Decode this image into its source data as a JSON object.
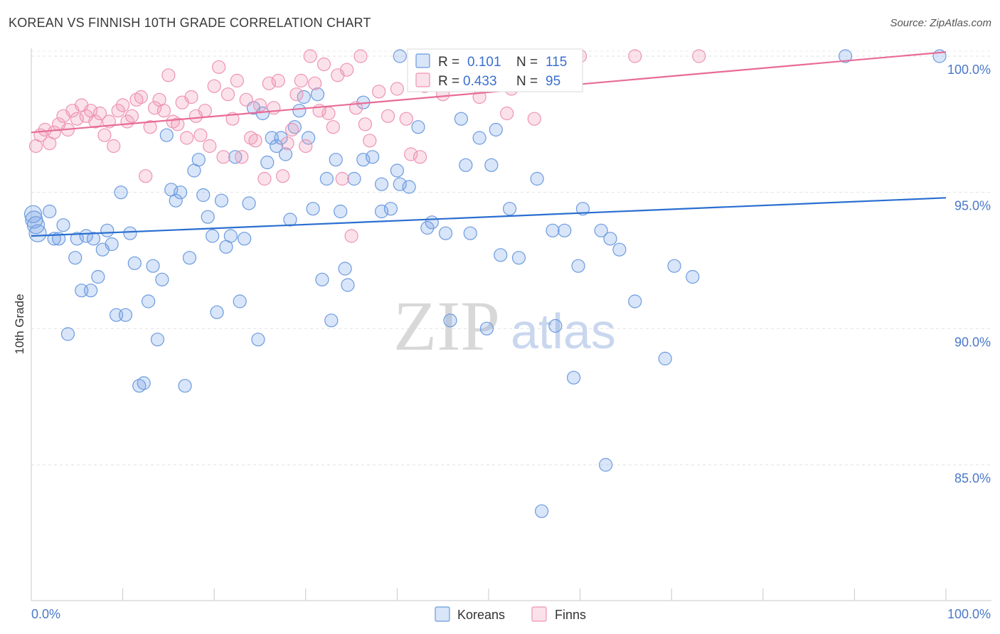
{
  "title": "KOREAN VS FINNISH 10TH GRADE CORRELATION CHART",
  "source": "Source: ZipAtlas.com",
  "watermark": {
    "zip": "ZIP",
    "atlas": "atlas"
  },
  "colors": {
    "korean": "#6b9be0",
    "korean_fill": "rgba(120,160,230,0.28)",
    "korean_line": "#2a6fd0",
    "finn": "#ee93b3",
    "finn_fill": "rgba(240,150,180,0.28)",
    "finn_line": "#e86b97",
    "accent": "#3a6fd0"
  },
  "legend": {
    "r_label": "R =",
    "n_label": "N =",
    "korean": {
      "r": "0.101",
      "n": "115"
    },
    "finn": {
      "r": "0.433",
      "n": "95"
    }
  },
  "bottom_legend": [
    "Koreans",
    "Finns"
  ],
  "chart_data": {
    "type": "scatter",
    "title": "KOREAN VS FINNISH 10TH GRADE CORRELATION CHART",
    "xlabel": "",
    "ylabel": "10th Grade",
    "xlim": [
      0,
      100
    ],
    "ylim": [
      80.5,
      100.7
    ],
    "x_tick_labels": [
      "0.0%",
      "100.0%"
    ],
    "y_ticks": [
      {
        "value": 100,
        "label": "100.0%"
      },
      {
        "value": 95,
        "label": "95.0%"
      },
      {
        "value": 90,
        "label": "90.0%"
      },
      {
        "value": 85,
        "label": "85.0%"
      }
    ],
    "grid": true,
    "legend_position": "top-center",
    "series": [
      {
        "name": "Koreans",
        "r": 0.101,
        "n": 115,
        "trend": [
          [
            0,
            93.4
          ],
          [
            100,
            94.8
          ]
        ],
        "points": [
          [
            0.2,
            94.2
          ],
          [
            0.3,
            94.0
          ],
          [
            0.5,
            93.8
          ],
          [
            0.7,
            93.5
          ],
          [
            2.0,
            94.3
          ],
          [
            2.5,
            93.3
          ],
          [
            3.5,
            93.8
          ],
          [
            3.0,
            93.3
          ],
          [
            4.8,
            92.6
          ],
          [
            4.0,
            89.8
          ],
          [
            5.0,
            93.3
          ],
          [
            5.5,
            91.4
          ],
          [
            6.0,
            93.4
          ],
          [
            6.5,
            91.4
          ],
          [
            6.8,
            93.3
          ],
          [
            7.3,
            91.9
          ],
          [
            7.8,
            92.9
          ],
          [
            8.3,
            93.6
          ],
          [
            8.8,
            93.1
          ],
          [
            9.3,
            90.5
          ],
          [
            9.8,
            95.0
          ],
          [
            10.3,
            90.5
          ],
          [
            10.8,
            93.5
          ],
          [
            11.3,
            92.4
          ],
          [
            11.8,
            87.9
          ],
          [
            12.3,
            88.0
          ],
          [
            12.8,
            91.0
          ],
          [
            13.3,
            92.3
          ],
          [
            13.8,
            89.6
          ],
          [
            14.3,
            91.8
          ],
          [
            14.8,
            97.1
          ],
          [
            15.3,
            95.1
          ],
          [
            15.8,
            94.7
          ],
          [
            16.3,
            95.0
          ],
          [
            16.8,
            87.9
          ],
          [
            17.3,
            92.6
          ],
          [
            17.8,
            95.8
          ],
          [
            18.3,
            96.2
          ],
          [
            18.8,
            94.9
          ],
          [
            19.3,
            94.1
          ],
          [
            19.8,
            93.4
          ],
          [
            20.3,
            90.6
          ],
          [
            20.8,
            94.7
          ],
          [
            21.3,
            93.0
          ],
          [
            21.8,
            93.4
          ],
          [
            22.3,
            96.3
          ],
          [
            22.8,
            91.0
          ],
          [
            23.3,
            93.3
          ],
          [
            23.8,
            94.6
          ],
          [
            24.3,
            98.1
          ],
          [
            24.8,
            89.6
          ],
          [
            25.3,
            97.9
          ],
          [
            25.8,
            96.1
          ],
          [
            26.3,
            97.0
          ],
          [
            26.8,
            96.7
          ],
          [
            27.3,
            97.0
          ],
          [
            27.8,
            96.4
          ],
          [
            28.3,
            94.0
          ],
          [
            28.8,
            97.4
          ],
          [
            29.3,
            98.0
          ],
          [
            29.8,
            98.5
          ],
          [
            30.3,
            97.0
          ],
          [
            30.8,
            94.4
          ],
          [
            31.3,
            98.6
          ],
          [
            31.8,
            91.8
          ],
          [
            32.3,
            95.5
          ],
          [
            32.8,
            90.3
          ],
          [
            33.3,
            96.2
          ],
          [
            33.8,
            94.3
          ],
          [
            34.3,
            92.2
          ],
          [
            34.6,
            91.6
          ],
          [
            35.3,
            95.5
          ],
          [
            36.3,
            98.3
          ],
          [
            36.3,
            96.2
          ],
          [
            37.3,
            96.3
          ],
          [
            38.3,
            95.3
          ],
          [
            38.3,
            94.3
          ],
          [
            39.3,
            94.4
          ],
          [
            40.0,
            95.8
          ],
          [
            40.3,
            95.3
          ],
          [
            41.3,
            95.2
          ],
          [
            42.3,
            97.4
          ],
          [
            43.3,
            93.7
          ],
          [
            43.8,
            93.9
          ],
          [
            45.3,
            93.5
          ],
          [
            45.8,
            90.3
          ],
          [
            47.0,
            97.7
          ],
          [
            47.5,
            96.0
          ],
          [
            48.0,
            93.5
          ],
          [
            49.0,
            97.0
          ],
          [
            49.8,
            90.0
          ],
          [
            50.3,
            96.0
          ],
          [
            50.8,
            97.3
          ],
          [
            51.3,
            92.7
          ],
          [
            52.3,
            94.4
          ],
          [
            53.3,
            92.6
          ],
          [
            55.3,
            95.5
          ],
          [
            55.8,
            83.3
          ],
          [
            57.0,
            93.6
          ],
          [
            57.3,
            90.1
          ],
          [
            58.3,
            93.6
          ],
          [
            59.3,
            88.2
          ],
          [
            59.8,
            92.3
          ],
          [
            60.3,
            94.4
          ],
          [
            62.3,
            93.6
          ],
          [
            62.8,
            85.0
          ],
          [
            63.3,
            93.3
          ],
          [
            64.3,
            92.9
          ],
          [
            66.0,
            91.0
          ],
          [
            69.3,
            88.9
          ],
          [
            70.3,
            92.3
          ],
          [
            72.3,
            91.9
          ],
          [
            89.0,
            100.0
          ],
          [
            99.3,
            100.0
          ],
          [
            40.3,
            100.0
          ]
        ]
      },
      {
        "name": "Finns",
        "r": 0.433,
        "n": 95,
        "trend": [
          [
            0,
            97.2
          ],
          [
            100,
            100.15
          ]
        ],
        "points": [
          [
            0.5,
            96.7
          ],
          [
            1.0,
            97.1
          ],
          [
            1.5,
            97.3
          ],
          [
            2.0,
            96.8
          ],
          [
            2.5,
            97.2
          ],
          [
            3.0,
            97.5
          ],
          [
            3.5,
            97.8
          ],
          [
            4.0,
            97.3
          ],
          [
            4.5,
            98.0
          ],
          [
            5.0,
            97.7
          ],
          [
            5.5,
            98.2
          ],
          [
            6.0,
            97.8
          ],
          [
            6.5,
            98.0
          ],
          [
            7.0,
            97.6
          ],
          [
            7.5,
            97.9
          ],
          [
            8.0,
            97.1
          ],
          [
            8.5,
            97.6
          ],
          [
            9.0,
            96.7
          ],
          [
            9.5,
            98.0
          ],
          [
            10.0,
            98.2
          ],
          [
            10.5,
            97.6
          ],
          [
            11.0,
            97.8
          ],
          [
            11.5,
            98.4
          ],
          [
            12.0,
            98.5
          ],
          [
            12.5,
            95.6
          ],
          [
            13.0,
            97.4
          ],
          [
            13.5,
            98.1
          ],
          [
            14.0,
            98.4
          ],
          [
            14.5,
            98.0
          ],
          [
            15.0,
            99.3
          ],
          [
            15.5,
            97.6
          ],
          [
            16.0,
            97.5
          ],
          [
            16.5,
            98.3
          ],
          [
            17.0,
            97.0
          ],
          [
            17.5,
            98.5
          ],
          [
            18.0,
            97.8
          ],
          [
            18.5,
            97.1
          ],
          [
            19.0,
            98.0
          ],
          [
            19.5,
            96.7
          ],
          [
            20.0,
            98.9
          ],
          [
            20.5,
            99.6
          ],
          [
            21.0,
            96.3
          ],
          [
            21.5,
            98.6
          ],
          [
            22.0,
            97.7
          ],
          [
            22.5,
            99.1
          ],
          [
            23.0,
            96.3
          ],
          [
            23.5,
            98.4
          ],
          [
            24.0,
            97.0
          ],
          [
            24.5,
            96.9
          ],
          [
            25.0,
            98.2
          ],
          [
            25.5,
            95.5
          ],
          [
            26.0,
            99.0
          ],
          [
            26.5,
            98.1
          ],
          [
            27.0,
            99.1
          ],
          [
            27.5,
            95.6
          ],
          [
            28.0,
            96.8
          ],
          [
            28.5,
            97.3
          ],
          [
            29.0,
            98.6
          ],
          [
            29.5,
            99.1
          ],
          [
            30.0,
            96.7
          ],
          [
            30.5,
            100.0
          ],
          [
            31.0,
            99.0
          ],
          [
            31.5,
            98.0
          ],
          [
            32.0,
            99.7
          ],
          [
            32.5,
            97.9
          ],
          [
            33.0,
            97.4
          ],
          [
            33.5,
            99.3
          ],
          [
            34.0,
            95.5
          ],
          [
            34.5,
            99.5
          ],
          [
            35.0,
            93.4
          ],
          [
            35.5,
            98.1
          ],
          [
            36.0,
            100.0
          ],
          [
            36.5,
            97.5
          ],
          [
            37.0,
            96.9
          ],
          [
            38.0,
            98.7
          ],
          [
            39.0,
            97.8
          ],
          [
            40.0,
            98.8
          ],
          [
            41.0,
            97.7
          ],
          [
            42.0,
            99.5
          ],
          [
            43.0,
            98.9
          ],
          [
            44.0,
            99.8
          ],
          [
            45.0,
            98.6
          ],
          [
            46.0,
            100.0
          ],
          [
            47.0,
            99.5
          ],
          [
            52.0,
            97.9
          ],
          [
            53.0,
            99.9
          ],
          [
            55.0,
            97.7
          ],
          [
            60.0,
            100.0
          ],
          [
            66.0,
            100.0
          ],
          [
            73.0,
            100.0
          ],
          [
            52.5,
            98.8
          ],
          [
            42.5,
            96.3
          ],
          [
            41.5,
            96.4
          ],
          [
            49.0,
            98.5
          ],
          [
            58.0,
            100.0
          ]
        ]
      }
    ]
  }
}
